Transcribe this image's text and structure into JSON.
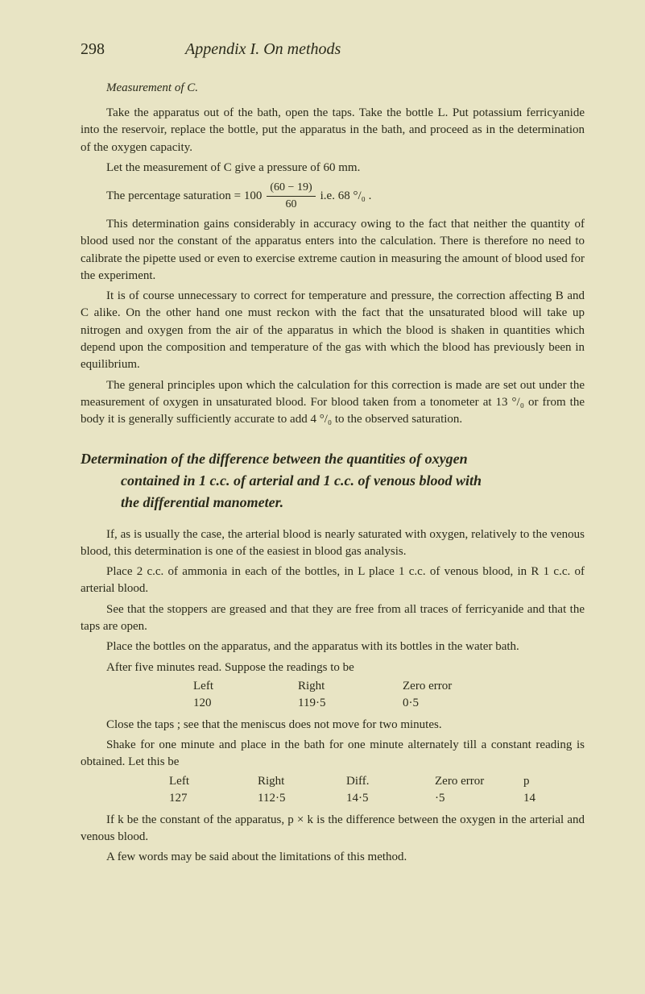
{
  "page_number": "298",
  "page_title": "Appendix I.   On methods",
  "measurement_label": "Measurement of C.",
  "p1": "Take the apparatus out of the bath, open the taps. Take the bottle L. Put potassium ferricyanide into the reservoir, replace the bottle, put the apparatus in the bath, and proceed as in the determination of the oxygen capacity.",
  "p2": "Let the measurement of C give a pressure of 60 mm.",
  "formula_prefix": "The percentage saturation = 100",
  "formula_num": "(60 − 19)",
  "formula_den": "60",
  "formula_suffix": "i.e. 68 °/₀ .",
  "p3": "This determination gains considerably in accuracy owing to the fact that neither the quantity of blood used nor the constant of the apparatus enters into the calculation. There is therefore no need to calibrate the pipette used or even to exercise extreme caution in measuring the amount of blood used for the experiment.",
  "p4": "It is of course unnecessary to correct for temperature and pressure, the correction affecting B and C alike. On the other hand one must reckon with the fact that the unsaturated blood will take up nitrogen and oxygen from the air of the apparatus in which the blood is shaken in quantities which depend upon the composition and temperature of the gas with which the blood has previously been in equilibrium.",
  "p5": "The general principles upon which the calculation for this correction is made are set out under the measurement of oxygen in unsaturated blood. For blood taken from a tonometer at 13 °/₀ or from the body it is generally sufficiently accurate to add 4 °/₀ to the observed saturation.",
  "heading_line1": "Determination of the difference between the quantities of oxygen",
  "heading_line2": "contained in 1 c.c. of arterial and 1 c.c. of venous blood with",
  "heading_line3": "the differential manometer.",
  "p6": "If, as is usually the case, the arterial blood is nearly saturated with oxygen, relatively to the venous blood, this determination is one of the easiest in blood gas analysis.",
  "p7": "Place 2 c.c. of ammonia in each of the bottles, in L place 1 c.c. of venous blood, in R 1 c.c. of arterial blood.",
  "p8": "See that the stoppers are greased and that they are free from all traces of ferricyanide and that the taps are open.",
  "p9": "Place the bottles on the apparatus, and the apparatus with its bottles in the water bath.",
  "p10": "After five minutes read.   Suppose the readings to be",
  "t1_h1": "Left",
  "t1_h2": "Right",
  "t1_h3": "Zero error",
  "t1_v1": "120",
  "t1_v2": "119·5",
  "t1_v3": "0·5",
  "p11": "Close the taps ; see that the meniscus does not move for two minutes.",
  "p12": "Shake for one minute and place in the bath for one minute alternately till a constant reading is obtained. Let this be",
  "t2_h1": "Left",
  "t2_h2": "Right",
  "t2_h3": "Diff.",
  "t2_h4": "Zero error",
  "t2_h5": "p",
  "t2_v1": "127",
  "t2_v2": "112·5",
  "t2_v3": "14·5",
  "t2_v4": "·5",
  "t2_v5": "14",
  "p13": "If k be the constant of the apparatus, p × k is the difference between the oxygen in the arterial and venous blood.",
  "p14": "A few words may be said about the limitations of this method."
}
